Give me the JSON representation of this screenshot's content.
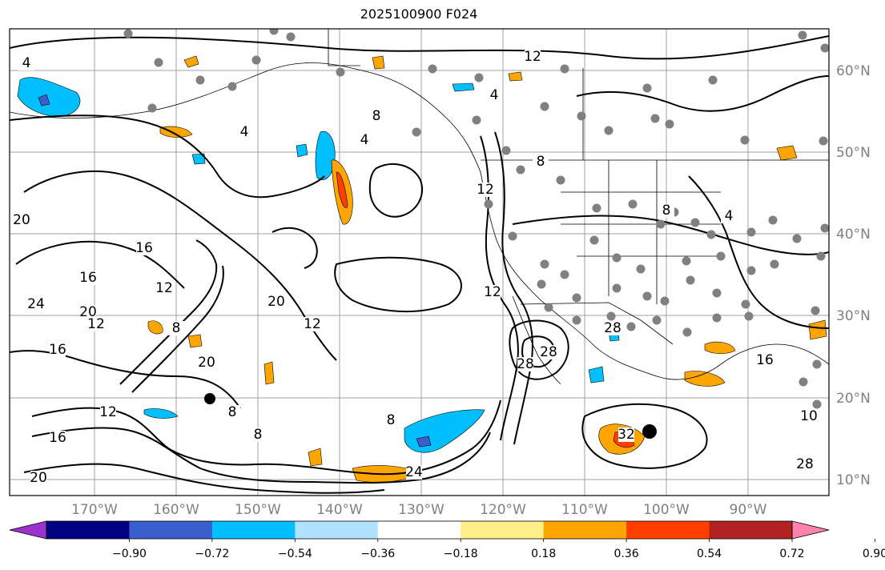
{
  "title": "2025100900 F024",
  "map": {
    "lat_ticks": [
      "60°N",
      "50°N",
      "40°N",
      "30°N",
      "20°N",
      "10°N"
    ],
    "lon_ticks": [
      "170°W",
      "160°W",
      "150°W",
      "140°W",
      "130°W",
      "120°W",
      "110°W",
      "100°W",
      "90°W"
    ],
    "contour_labels": [
      "4",
      "12",
      "4",
      "8",
      "4",
      "4",
      "20",
      "16",
      "16",
      "12",
      "20",
      "24",
      "16",
      "12",
      "20",
      "8",
      "20",
      "12",
      "12",
      "16",
      "8",
      "8",
      "24",
      "12",
      "8",
      "8",
      "4",
      "12",
      "28",
      "28",
      "32",
      "8",
      "28",
      "16",
      "10",
      "28",
      "20"
    ],
    "fill_colors": {
      "strong_negative": "#9a32cd",
      "negative_1": "#000080",
      "negative_2": "#3a5fcd",
      "negative_3": "#00bfff",
      "negative_4": "#b0e2ff",
      "positive_1": "#fff08c",
      "positive_2": "#ffa500",
      "positive_3": "#ff3e00",
      "positive_4": "#b22222",
      "strong_positive": "#ff82ab"
    },
    "station_marker_color": "#808080"
  },
  "colorbar": {
    "colors": [
      "#9a32cd",
      "#000080",
      "#3a5fcd",
      "#00bfff",
      "#b0e2ff",
      "#ffffff",
      "#fff08c",
      "#ffa500",
      "#ff3e00",
      "#b22222",
      "#ff82ab"
    ],
    "tick_labels": [
      "−0.90",
      "−0.72",
      "−0.54",
      "−0.36",
      "−0.18",
      "0.18",
      "0.36",
      "0.54",
      "0.72",
      "0.90"
    ]
  }
}
